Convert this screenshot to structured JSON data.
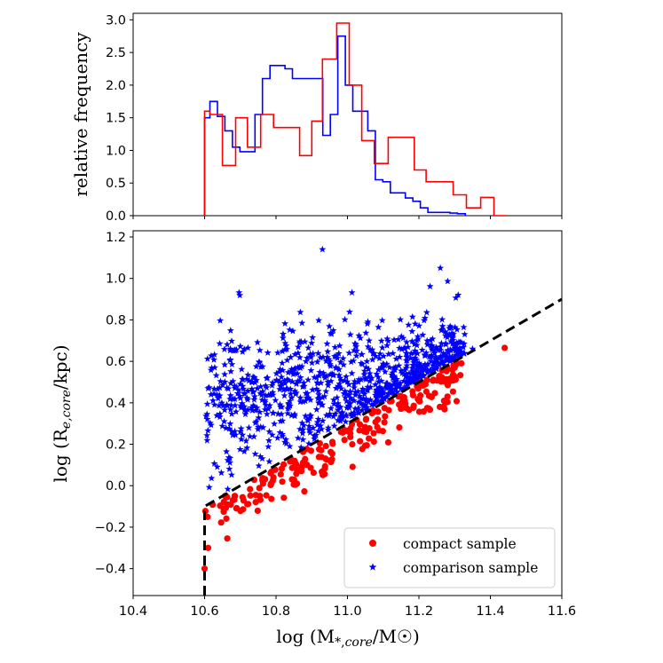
{
  "chart_data": [
    {
      "type": "histogram",
      "panel": "top",
      "ylabel": "relative frequency",
      "xlim": [
        10.4,
        11.6
      ],
      "ylim": [
        0,
        3.1
      ],
      "yticks": [
        "0.0",
        "0.5",
        "1.0",
        "1.5",
        "2.0",
        "2.5",
        "3.0"
      ],
      "yticks_values": [
        0,
        0.5,
        1.0,
        1.5,
        2.0,
        2.5,
        3.0
      ],
      "series": [
        {
          "name": "comparison sample",
          "color": "#0000ff",
          "bin_edges": [
            10.6,
            10.615,
            10.636,
            10.657,
            10.678,
            10.699,
            10.72,
            10.741,
            10.762,
            10.783,
            10.804,
            10.825,
            10.846,
            10.867,
            10.931,
            10.952,
            10.973,
            10.994,
            11.015,
            11.036,
            11.057,
            11.078,
            11.099,
            11.12,
            11.141,
            11.162,
            11.183,
            11.204,
            11.225,
            11.266,
            11.287,
            11.308,
            11.33
          ],
          "values": [
            1.5,
            1.75,
            1.52,
            1.3,
            1.05,
            0.98,
            0.98,
            1.55,
            2.1,
            2.3,
            2.3,
            2.25,
            2.1,
            2.1,
            1.23,
            1.55,
            2.75,
            2.0,
            1.6,
            1.6,
            1.3,
            0.55,
            0.52,
            0.35,
            0.35,
            0.27,
            0.22,
            0.12,
            0.05,
            0.05,
            0.04,
            0.03
          ]
        },
        {
          "name": "compact sample",
          "color": "#ff0000",
          "bin_edges": [
            10.6,
            10.615,
            10.65,
            10.687,
            10.72,
            10.757,
            10.793,
            10.83,
            10.866,
            10.9,
            10.93,
            10.97,
            11.005,
            11.04,
            11.075,
            11.114,
            11.15,
            11.187,
            11.22,
            11.26,
            11.296,
            11.333,
            11.373,
            11.41,
            11.445
          ],
          "values": [
            1.6,
            1.55,
            0.77,
            1.5,
            1.05,
            1.55,
            1.35,
            1.35,
            0.92,
            1.45,
            2.4,
            2.95,
            2.0,
            1.15,
            0.8,
            1.2,
            1.2,
            0.7,
            0.52,
            0.52,
            0.32,
            0.12,
            0.28,
            0.0
          ]
        }
      ]
    },
    {
      "type": "scatter",
      "panel": "bottom",
      "xlabel": "log (M*,core/M☉)",
      "ylabel": "log (Re,core/kpc)",
      "xlim": [
        10.4,
        11.6
      ],
      "ylim": [
        -0.53,
        1.23
      ],
      "xticks": [
        "10.4",
        "10.6",
        "10.8",
        "11.0",
        "11.2",
        "11.4",
        "11.6"
      ],
      "xticks_values": [
        10.4,
        10.6,
        10.8,
        11.0,
        11.2,
        11.4,
        11.6
      ],
      "yticks": [
        "−0.4",
        "−0.2",
        "0.0",
        "0.2",
        "0.4",
        "0.6",
        "0.8",
        "1.0",
        "1.2"
      ],
      "yticks_values": [
        -0.4,
        -0.2,
        0.0,
        0.2,
        0.4,
        0.6,
        0.8,
        1.0,
        1.2
      ],
      "boundary_line": {
        "style": "dashed",
        "color": "#000000",
        "points": [
          [
            10.6,
            -0.53
          ],
          [
            10.6,
            -0.1
          ],
          [
            11.6,
            0.9
          ]
        ]
      },
      "series": [
        {
          "name": "compact sample",
          "marker": "circle",
          "color": "#ff0000",
          "n_points": 220,
          "description": "points below the dashed boundary, log Re roughly -0.4 to 0.67"
        },
        {
          "name": "comparison sample",
          "marker": "star",
          "color": "#0000ff",
          "n_points": 900,
          "description": "points above the dashed boundary, log Re roughly -0.1 to 1.14"
        }
      ],
      "legend": {
        "placement": "lower-right",
        "entries": [
          "compact sample",
          "comparison sample"
        ]
      }
    }
  ]
}
